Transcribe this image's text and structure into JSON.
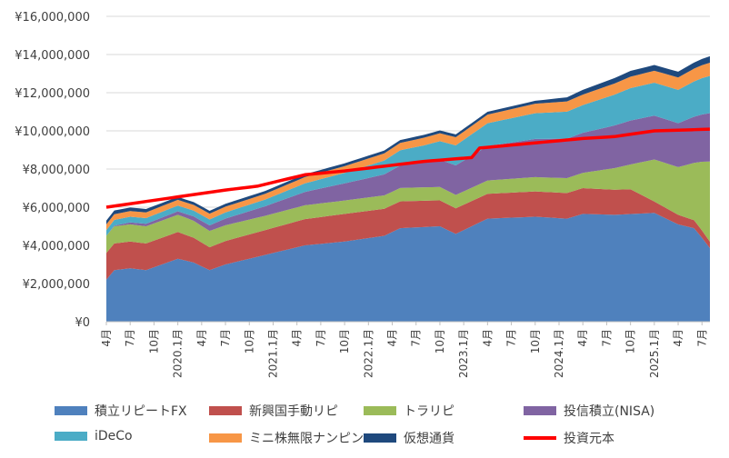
{
  "chart_data": {
    "type": "area",
    "stacked": true,
    "ylim": [
      0,
      16000000
    ],
    "yticks": [
      0,
      2000000,
      4000000,
      6000000,
      8000000,
      10000000,
      12000000,
      14000000,
      16000000
    ],
    "ytick_labels": [
      "¥0",
      "¥2,000,000",
      "¥4,000,000",
      "¥6,000,000",
      "¥8,000,000",
      "¥10,000,000",
      "¥12,000,000",
      "¥14,000,000",
      "¥16,000,000"
    ],
    "x_labels": [
      "4月",
      "7月",
      "10月",
      "2020.1月",
      "4月",
      "7月",
      "10月",
      "2021.1月",
      "4月",
      "7月",
      "10月",
      "2022.1月",
      "4月",
      "7月",
      "10月",
      "2023.1月",
      "4月",
      "7月",
      "10月",
      "2024.1月",
      "4月",
      "7月",
      "10月",
      "2025.1月",
      "4月",
      "7月"
    ],
    "months": 77,
    "series": [
      {
        "name": "積立リピートFX",
        "color": "#4f81bd",
        "anchors": [
          [
            0,
            2200000
          ],
          [
            1,
            2700000
          ],
          [
            3,
            2800000
          ],
          [
            5,
            2700000
          ],
          [
            9,
            3300000
          ],
          [
            11,
            3100000
          ],
          [
            13,
            2700000
          ],
          [
            15,
            3000000
          ],
          [
            20,
            3500000
          ],
          [
            25,
            4000000
          ],
          [
            30,
            4200000
          ],
          [
            35,
            4500000
          ],
          [
            37,
            4900000
          ],
          [
            42,
            5000000
          ],
          [
            44,
            4600000
          ],
          [
            46,
            5000000
          ],
          [
            48,
            5400000
          ],
          [
            54,
            5500000
          ],
          [
            58,
            5400000
          ],
          [
            60,
            5650000
          ],
          [
            64,
            5600000
          ],
          [
            69,
            5700000
          ],
          [
            72,
            5100000
          ],
          [
            74,
            4900000
          ],
          [
            75,
            4400000
          ],
          [
            77,
            3300000
          ]
        ]
      },
      {
        "name": "新興国手動リピ",
        "color": "#c0504d",
        "anchors": [
          [
            0,
            1400000
          ],
          [
            9,
            1400000
          ],
          [
            13,
            1200000
          ],
          [
            20,
            1300000
          ],
          [
            30,
            1450000
          ],
          [
            38,
            1400000
          ],
          [
            48,
            1300000
          ],
          [
            60,
            1350000
          ],
          [
            66,
            1300000
          ],
          [
            69,
            600000
          ],
          [
            72,
            500000
          ],
          [
            77,
            300000
          ]
        ]
      },
      {
        "name": "トラリピ",
        "color": "#9bbb59",
        "anchors": [
          [
            0,
            900000
          ],
          [
            10,
            900000
          ],
          [
            20,
            750000
          ],
          [
            30,
            700000
          ],
          [
            40,
            700000
          ],
          [
            48,
            700000
          ],
          [
            60,
            800000
          ],
          [
            66,
            1300000
          ],
          [
            69,
            2200000
          ],
          [
            72,
            2500000
          ],
          [
            74,
            3000000
          ],
          [
            77,
            4800000
          ]
        ]
      },
      {
        "name": "投信積立(NISA)",
        "color": "#8064a2",
        "anchors": [
          [
            0,
            0
          ],
          [
            3,
            100000
          ],
          [
            10,
            200000
          ],
          [
            20,
            500000
          ],
          [
            30,
            900000
          ],
          [
            40,
            1300000
          ],
          [
            48,
            1800000
          ],
          [
            54,
            2000000
          ],
          [
            60,
            2100000
          ],
          [
            66,
            2300000
          ],
          [
            72,
            2300000
          ],
          [
            77,
            2600000
          ]
        ]
      },
      {
        "name": "iDeCo",
        "color": "#4bacc6",
        "anchors": [
          [
            0,
            300000
          ],
          [
            10,
            300000
          ],
          [
            20,
            350000
          ],
          [
            30,
            550000
          ],
          [
            40,
            900000
          ],
          [
            48,
            1200000
          ],
          [
            54,
            1350000
          ],
          [
            60,
            1450000
          ],
          [
            66,
            1700000
          ],
          [
            72,
            1750000
          ],
          [
            77,
            2000000
          ]
        ]
      },
      {
        "name": "ミニ株無限ナンピン",
        "color": "#f79646",
        "anchors": [
          [
            0,
            300000
          ],
          [
            10,
            300000
          ],
          [
            20,
            300000
          ],
          [
            30,
            350000
          ],
          [
            40,
            400000
          ],
          [
            48,
            450000
          ],
          [
            54,
            500000
          ],
          [
            60,
            550000
          ],
          [
            66,
            600000
          ],
          [
            72,
            650000
          ],
          [
            77,
            700000
          ]
        ]
      },
      {
        "name": "仮想通貨",
        "color": "#1f497d",
        "anchors": [
          [
            0,
            200000
          ],
          [
            10,
            150000
          ],
          [
            20,
            150000
          ],
          [
            30,
            150000
          ],
          [
            40,
            150000
          ],
          [
            48,
            150000
          ],
          [
            54,
            150000
          ],
          [
            60,
            250000
          ],
          [
            66,
            300000
          ],
          [
            72,
            300000
          ],
          [
            77,
            350000
          ]
        ]
      }
    ],
    "line_series": {
      "name": "投資元本",
      "color": "#ff0000",
      "anchors": [
        [
          0,
          6000000
        ],
        [
          10,
          6600000
        ],
        [
          15,
          6900000
        ],
        [
          19,
          7100000
        ],
        [
          21,
          7300000
        ],
        [
          25,
          7700000
        ],
        [
          30,
          7900000
        ],
        [
          40,
          8400000
        ],
        [
          46,
          8600000
        ],
        [
          47,
          9100000
        ],
        [
          60,
          9600000
        ],
        [
          64,
          9700000
        ],
        [
          69,
          10000000
        ],
        [
          77,
          10100000
        ]
      ]
    },
    "legend": {
      "position": "bottom",
      "items": [
        "積立リピートFX",
        "新興国手動リピ",
        "トラリピ",
        "投信積立(NISA)",
        "iDeCo",
        "ミニ株無限ナンピン",
        "仮想通貨",
        "投資元本"
      ]
    }
  }
}
